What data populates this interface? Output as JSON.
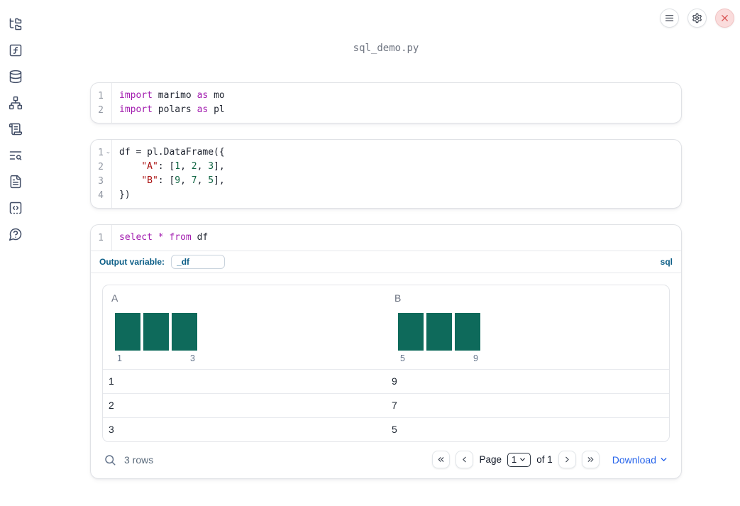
{
  "app": {
    "title": "sql_demo.py"
  },
  "topbar": {
    "buttons": [
      {
        "name": "menu-icon"
      },
      {
        "name": "gear-icon"
      },
      {
        "name": "close-icon"
      }
    ]
  },
  "sidebar": {
    "icons": [
      "file-tree-icon",
      "variables-icon",
      "datasources-icon",
      "dependency-graph-icon",
      "scroll-logs-icon",
      "search-list-icon",
      "documentation-icon",
      "snippets-icon",
      "help-icon"
    ]
  },
  "cells": [
    {
      "kind": "python",
      "lines": [
        {
          "num": "1",
          "tokens": [
            [
              "kw",
              "import"
            ],
            [
              "pl",
              " marimo "
            ],
            [
              "kw",
              "as"
            ],
            [
              "pl",
              " mo"
            ]
          ]
        },
        {
          "num": "2",
          "tokens": [
            [
              "kw",
              "import"
            ],
            [
              "pl",
              " polars "
            ],
            [
              "kw",
              "as"
            ],
            [
              "pl",
              " pl"
            ]
          ]
        }
      ]
    },
    {
      "kind": "python",
      "lines": [
        {
          "num": "1",
          "fold": true,
          "tokens": [
            [
              "pl",
              "df = pl.DataFrame({"
            ]
          ]
        },
        {
          "num": "2",
          "tokens": [
            [
              "pl",
              "    "
            ],
            [
              "str",
              "\"A\""
            ],
            [
              "pl",
              ": ["
            ],
            [
              "num",
              "1"
            ],
            [
              "pl",
              ", "
            ],
            [
              "num",
              "2"
            ],
            [
              "pl",
              ", "
            ],
            [
              "num",
              "3"
            ],
            [
              "pl",
              "],"
            ]
          ]
        },
        {
          "num": "3",
          "tokens": [
            [
              "pl",
              "    "
            ],
            [
              "str",
              "\"B\""
            ],
            [
              "pl",
              ": ["
            ],
            [
              "num",
              "9"
            ],
            [
              "pl",
              ", "
            ],
            [
              "num",
              "7"
            ],
            [
              "pl",
              ", "
            ],
            [
              "num",
              "5"
            ],
            [
              "pl",
              "],"
            ]
          ]
        },
        {
          "num": "4",
          "tokens": [
            [
              "pl",
              "})"
            ]
          ]
        }
      ]
    },
    {
      "kind": "sql",
      "lines": [
        {
          "num": "1",
          "tokens": [
            [
              "kw",
              "select"
            ],
            [
              "pl",
              " "
            ],
            [
              "kw",
              "*"
            ],
            [
              "pl",
              " "
            ],
            [
              "kw",
              "from"
            ],
            [
              "pl",
              " df"
            ]
          ]
        }
      ],
      "footer": {
        "output_variable_label": "Output variable:",
        "output_variable_value": "_df",
        "language_badge": "sql"
      }
    }
  ],
  "table": {
    "columns": [
      {
        "label": "A",
        "hist": {
          "type": "bar",
          "bars": [
            1,
            1,
            1
          ],
          "min_label": "1",
          "max_label": "3"
        }
      },
      {
        "label": "B",
        "hist": {
          "type": "bar",
          "bars": [
            1,
            1,
            1
          ],
          "min_label": "5",
          "max_label": "9"
        }
      }
    ],
    "rows": [
      [
        "1",
        "9"
      ],
      [
        "2",
        "7"
      ],
      [
        "3",
        "5"
      ]
    ],
    "footer": {
      "row_count": "3 rows",
      "page_label": "Page",
      "page_value": "1",
      "page_total": "of 1",
      "download_label": "Download"
    }
  },
  "colors": {
    "histogram_bar": "#0e6a5b",
    "keyword": "#a21caf",
    "string": "#aa1111",
    "number": "#116644",
    "accent_teal_blue": "#0c5e87",
    "link_blue": "#2563eb",
    "close_red": "#d95757",
    "close_bg": "#fadcdc",
    "sidebar_icon": "#414d66"
  }
}
